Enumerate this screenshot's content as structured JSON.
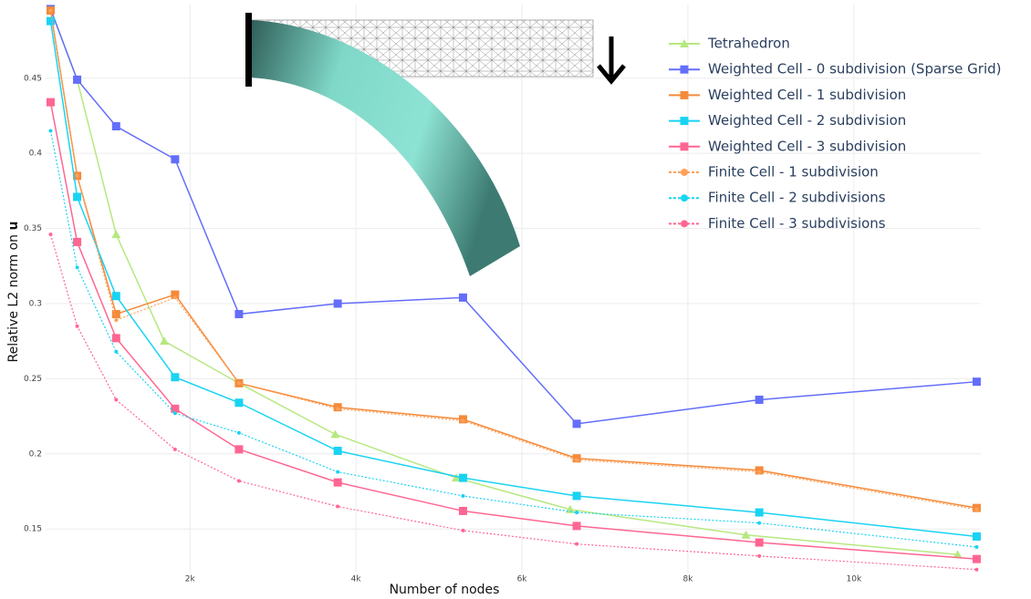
{
  "chart_data": {
    "type": "line",
    "x_label": "Number of nodes",
    "y_label": "Relative L2 norm on ",
    "y_label_bold": "u",
    "x": [
      320,
      640,
      1110,
      1820,
      2590,
      3780,
      5290,
      6660,
      8860,
      11480
    ],
    "xlim": [
      260,
      11530
    ],
    "ylim": [
      0.121,
      0.499
    ],
    "xticks": [
      {
        "value": 2000,
        "label": "2k"
      },
      {
        "value": 4000,
        "label": "4k"
      },
      {
        "value": 6000,
        "label": "6k"
      },
      {
        "value": 8000,
        "label": "8k"
      },
      {
        "value": 10000,
        "label": "10k"
      }
    ],
    "yticks": [
      0.15,
      0.2,
      0.25,
      0.3,
      0.35,
      0.4,
      0.45
    ],
    "grid": true,
    "series": [
      {
        "name": "Tetrahedron",
        "color": "#b6e880",
        "marker": "triangle",
        "dash": false,
        "x": [
          320,
          640,
          1110,
          1690,
          2590,
          3750,
          5210,
          6580,
          8700,
          11250
        ],
        "values": [
          0.496,
          0.449,
          0.346,
          0.275,
          0.247,
          0.213,
          0.184,
          0.163,
          0.146,
          0.133
        ]
      },
      {
        "name": "Weighted Cell - 0 subdivision (Sparse Grid)",
        "color": "#636efa",
        "marker": "square",
        "dash": false,
        "values": [
          0.496,
          0.449,
          0.418,
          0.396,
          0.293,
          0.3,
          0.304,
          0.22,
          0.236,
          0.248
        ]
      },
      {
        "name": "Weighted Cell - 1 subdivision",
        "color": "#f58a3a",
        "marker": "square",
        "dash": false,
        "values": [
          0.495,
          0.385,
          0.293,
          0.306,
          0.247,
          0.231,
          0.223,
          0.197,
          0.189,
          0.164
        ]
      },
      {
        "name": "Weighted Cell - 2 subdivision",
        "color": "#19d3f3",
        "marker": "square",
        "dash": false,
        "values": [
          0.488,
          0.371,
          0.305,
          0.251,
          0.234,
          0.202,
          0.184,
          0.172,
          0.161,
          0.145
        ]
      },
      {
        "name": "Weighted Cell - 3 subdivision",
        "color": "#ff6692",
        "marker": "square",
        "dash": false,
        "values": [
          0.434,
          0.341,
          0.277,
          0.23,
          0.203,
          0.181,
          0.162,
          0.152,
          0.141,
          0.13
        ]
      },
      {
        "name": "Finite Cell - 1 subdivision",
        "color": "#ffa15a",
        "marker": "circle",
        "dash": true,
        "values": [
          0.495,
          0.385,
          0.289,
          0.304,
          0.247,
          0.23,
          0.222,
          0.196,
          0.188,
          0.163
        ]
      },
      {
        "name": "Finite Cell - 2 subdivisions",
        "color": "#19d3f3",
        "marker": "circle",
        "dash": true,
        "values": [
          0.415,
          0.324,
          0.268,
          0.227,
          0.214,
          0.188,
          0.172,
          0.161,
          0.154,
          0.138
        ]
      },
      {
        "name": "Finite Cell - 3 subdivisions",
        "color": "#ff6692",
        "marker": "circle",
        "dash": true,
        "values": [
          0.346,
          0.285,
          0.236,
          0.203,
          0.182,
          0.165,
          0.149,
          0.14,
          0.132,
          0.123
        ]
      }
    ]
  }
}
